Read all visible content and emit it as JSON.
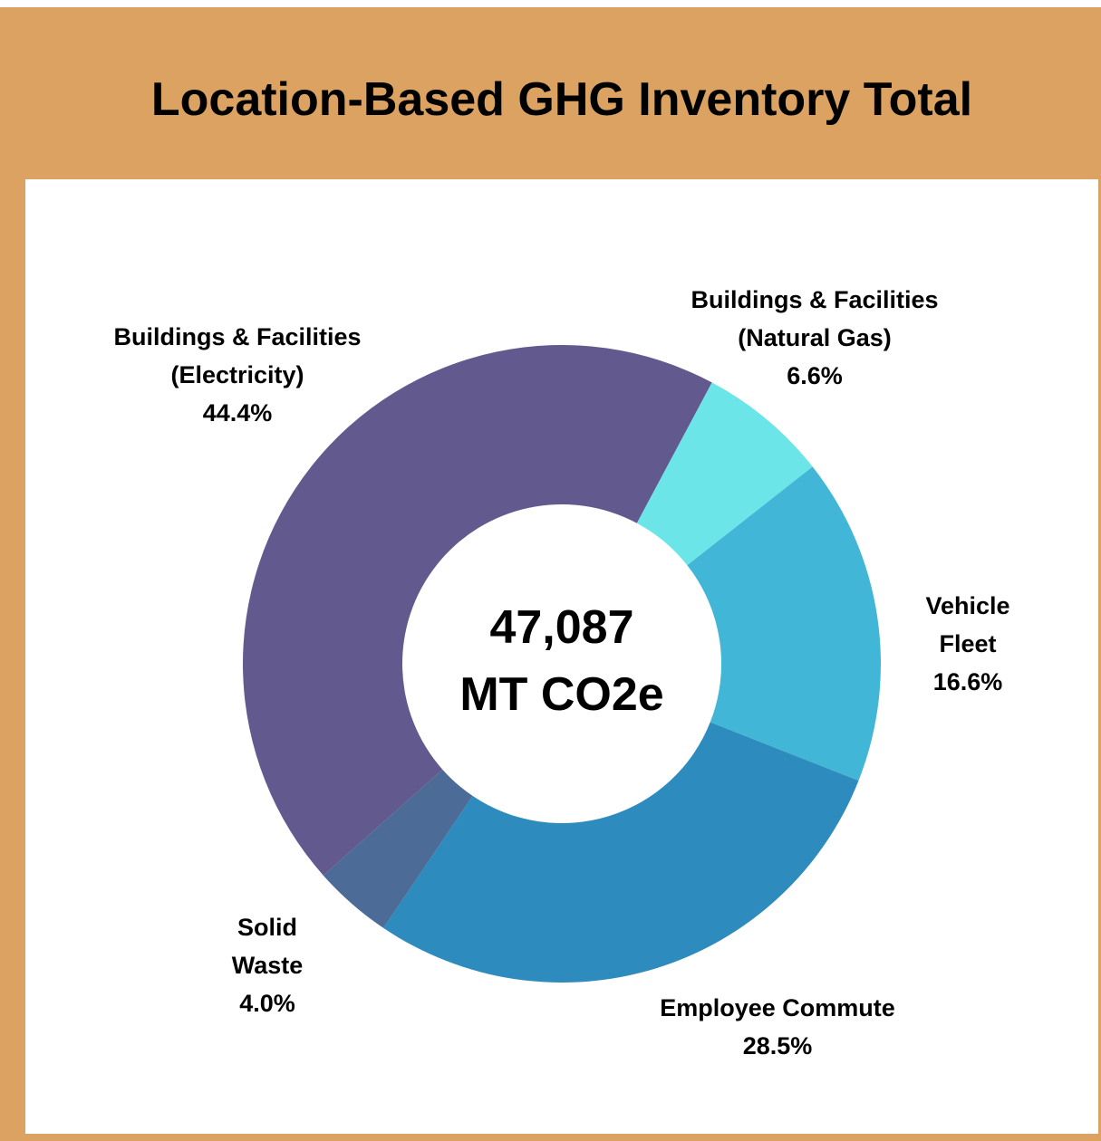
{
  "chart_data": {
    "type": "donut",
    "title": "Location-Based GHG Inventory Total",
    "center_text": [
      "47,087",
      "MT CO2e"
    ],
    "categories": [
      "Buildings & Facilities\n(Electricity)",
      "Buildings & Facilities\n(Natural Gas)",
      "Vehicle\nFleet",
      "Employee Commute",
      "Solid\nWaste"
    ],
    "values": [
      44.4,
      6.6,
      16.6,
      28.5,
      4.0
    ],
    "value_labels": [
      "44.4%",
      "6.6%",
      "16.6%",
      "28.5%",
      "4.0%"
    ],
    "colors": [
      "#625a8f",
      "#6ce5e8",
      "#41b6d6",
      "#2e8bbd",
      "#4c6b97"
    ]
  }
}
